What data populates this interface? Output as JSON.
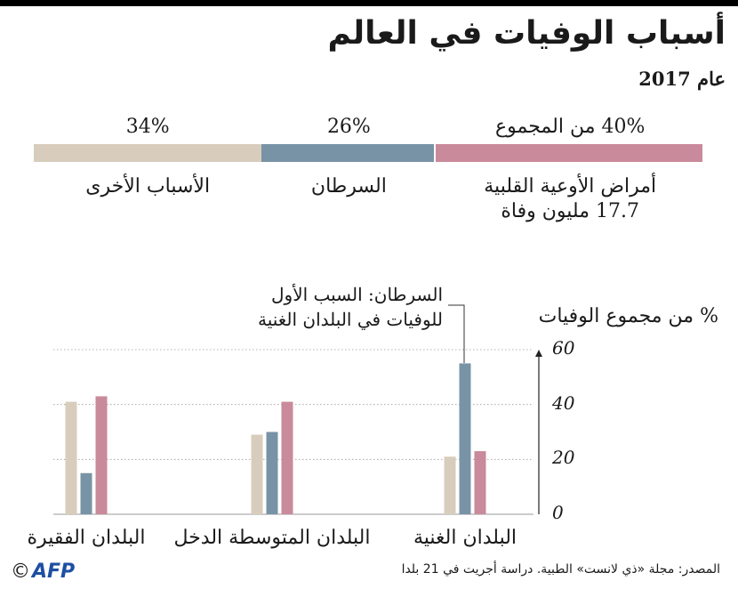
{
  "header": {
    "title": "أسباب الوفيات في العالم",
    "year": "عام 2017"
  },
  "summary": {
    "segments": [
      {
        "pct_label": "40% من المجموع",
        "value": 40,
        "cause": "أمراض الأوعية القلبية",
        "sub": "17.7 مليون وفاة",
        "color": "#c98a9b"
      },
      {
        "pct_label": "26%",
        "value": 26,
        "cause": "السرطان",
        "sub": "",
        "color": "#7893a5"
      },
      {
        "pct_label": "34%",
        "value": 34,
        "cause": "الأسباب الأخرى",
        "sub": "",
        "color": "#d8cdbc"
      }
    ]
  },
  "chart_data": {
    "type": "bar",
    "ylabel": "% من مجموع الوفيات",
    "ylim": [
      0,
      60
    ],
    "yticks": [
      "60",
      "40",
      "20",
      "0"
    ],
    "categories": [
      "البلدان الغنية",
      "البلدان المتوسطة الدخل",
      "البلدان الفقيرة"
    ],
    "series": [
      {
        "name": "الأسباب الأخرى",
        "color": "#d8cdbc",
        "values": [
          21,
          29,
          41
        ]
      },
      {
        "name": "السرطان",
        "color": "#7893a5",
        "values": [
          55,
          30,
          15
        ]
      },
      {
        "name": "أمراض الأوعية القلبية",
        "color": "#c98a9b",
        "values": [
          23,
          41,
          43
        ]
      }
    ],
    "grid": true,
    "annotation": {
      "line1": "السرطان: السبب الأول",
      "line2": "للوفيات في البلدان الغنية"
    }
  },
  "footer": {
    "source": "المصدر: مجلة «ذي لانست» الطبية. دراسة أجريت في 21 بلدا",
    "logo": "AFP",
    "copyright": "©"
  }
}
